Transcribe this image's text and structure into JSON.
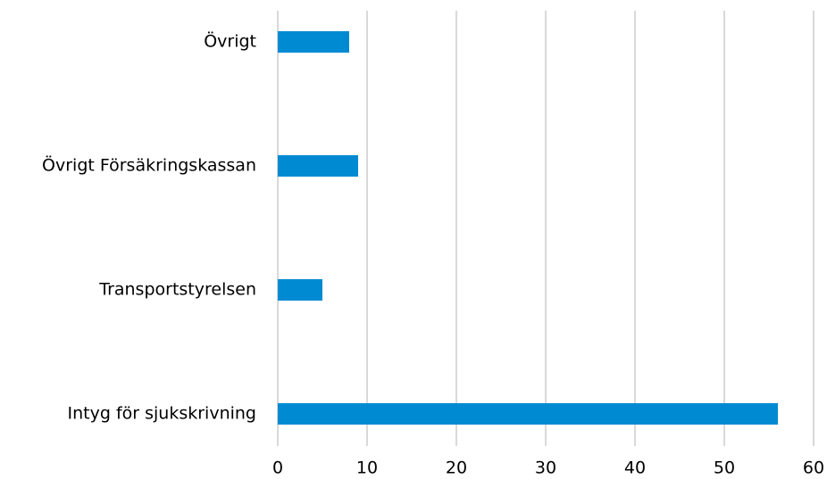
{
  "chart_data": {
    "type": "hbar",
    "categories": [
      "Övrigt",
      "Övrigt Försäkringskassan",
      "Transportstyrelsen",
      "Intyg för sjukskrivning"
    ],
    "values": [
      8,
      9,
      5,
      56
    ],
    "color": "#008ad2",
    "xlim": [
      0,
      60
    ],
    "xticks": [
      0,
      10,
      20,
      30,
      40,
      50,
      60
    ],
    "grid": true
  }
}
